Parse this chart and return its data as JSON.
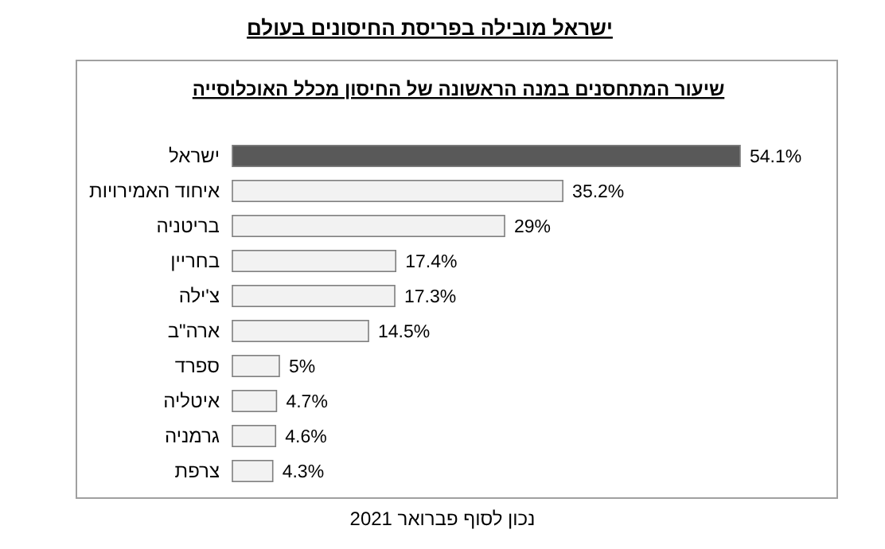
{
  "chart_data": {
    "type": "bar",
    "orientation": "horizontal",
    "title": "ישראל מובילה בפריסת החיסונים בעולם",
    "subtitle": "שיעור המתחסנים במנה הראשונה של החיסון מכלל האוכלוסייה",
    "categories": [
      "ישראל",
      "איחוד האמירויות",
      "בריטניה",
      "בחריין",
      "צ'ילה",
      "ארה\"ב",
      "ספרד",
      "איטליה",
      "גרמניה",
      "צרפת"
    ],
    "values": [
      54.1,
      35.2,
      29,
      17.4,
      17.3,
      14.5,
      5,
      4.7,
      4.6,
      4.3
    ],
    "value_labels": [
      "54.1%",
      "35.2%",
      "29%",
      "17.4%",
      "17.3%",
      "14.5%",
      "5%",
      "4.7%",
      "4.6%",
      "4.3%"
    ],
    "colors": [
      "#595959",
      "#f2f2f2",
      "#f2f2f2",
      "#f2f2f2",
      "#f2f2f2",
      "#f2f2f2",
      "#f2f2f2",
      "#f2f2f2",
      "#f2f2f2",
      "#f2f2f2"
    ],
    "annotations": [
      "נכון לסוף פברואר 2021"
    ]
  }
}
